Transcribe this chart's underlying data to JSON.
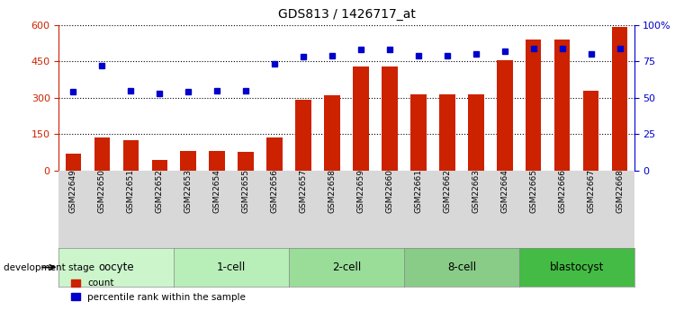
{
  "title": "GDS813 / 1426717_at",
  "samples": [
    "GSM22649",
    "GSM22650",
    "GSM22651",
    "GSM22652",
    "GSM22653",
    "GSM22654",
    "GSM22655",
    "GSM22656",
    "GSM22657",
    "GSM22658",
    "GSM22659",
    "GSM22660",
    "GSM22661",
    "GSM22662",
    "GSM22663",
    "GSM22664",
    "GSM22665",
    "GSM22666",
    "GSM22667",
    "GSM22668"
  ],
  "counts": [
    70,
    135,
    125,
    45,
    80,
    80,
    75,
    135,
    290,
    310,
    430,
    430,
    315,
    315,
    315,
    455,
    540,
    540,
    330,
    590
  ],
  "percentiles": [
    54,
    72,
    55,
    53,
    54,
    55,
    55,
    73,
    78,
    79,
    83,
    83,
    79,
    79,
    80,
    82,
    84,
    84,
    80,
    84
  ],
  "stages": [
    {
      "label": "oocyte",
      "count": 4,
      "color": "#ccf5cc"
    },
    {
      "label": "1-cell",
      "count": 4,
      "color": "#b8eeb8"
    },
    {
      "label": "2-cell",
      "count": 4,
      "color": "#99dd99"
    },
    {
      "label": "8-cell",
      "count": 4,
      "color": "#88cc88"
    },
    {
      "label": "blastocyst",
      "count": 4,
      "color": "#44bb44"
    }
  ],
  "bar_color": "#cc2200",
  "dot_color": "#0000cc",
  "left_axis_color": "#cc2200",
  "right_axis_color": "#0000cc",
  "ylim_left": [
    0,
    600
  ],
  "yticks_left": [
    0,
    150,
    300,
    450,
    600
  ],
  "ytick_labels_right": [
    "0",
    "25",
    "50",
    "75",
    "100%"
  ],
  "xlabel_bg": "#d8d8d8",
  "grid_linestyle": "dotted"
}
